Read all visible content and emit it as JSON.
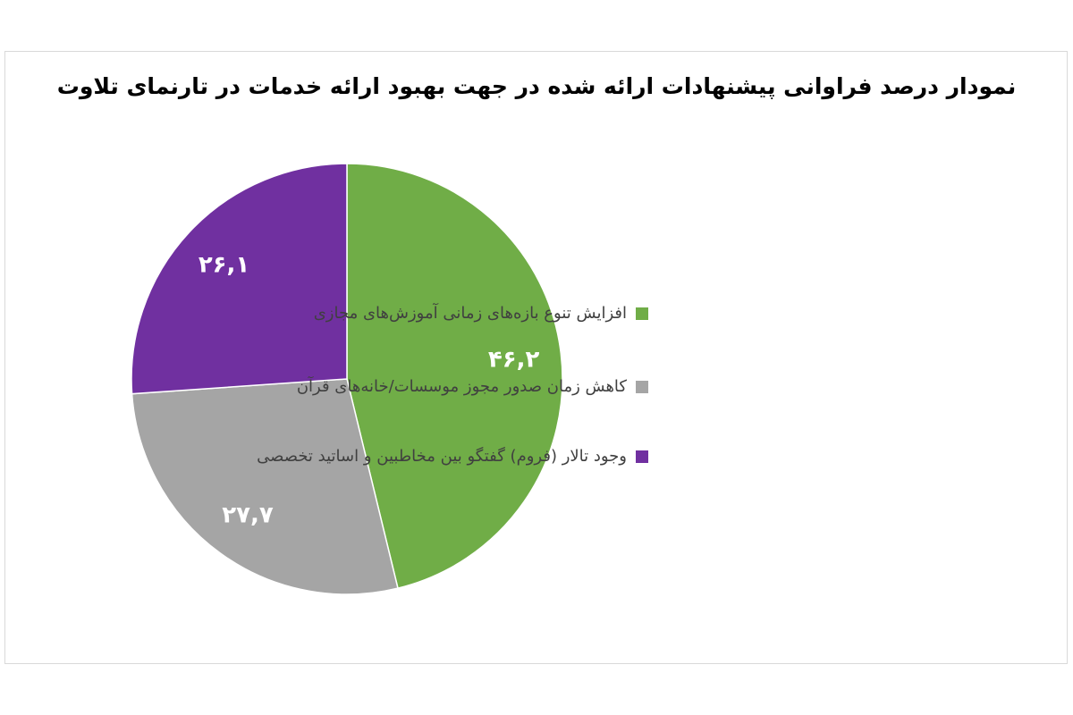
{
  "chart_data": {
    "type": "pie",
    "title": "نمودار درصد فراوانی پیشنهادات ارائه شده در جهت بهبود ارائه خدمات در تارنمای تلاوت",
    "categories": [
      "افزایش تنوع بازه‌های زمانی آموزش‌های مجازی",
      "کاهش زمان صدور مجوز موسسات/خانه‌های قرآن",
      "وجود تالار (فروم) گفتگو بین مخاطبین و اساتید تخصصی"
    ],
    "values": [
      46.2,
      27.7,
      26.1
    ],
    "data_labels": [
      "۴۶,۲",
      "۲۷,۷",
      "۲۶,۱"
    ],
    "colors": [
      "#70ad47",
      "#a5a5a5",
      "#7030a0"
    ],
    "start": "12 o'clock, clockwise",
    "legend_placement": "right"
  }
}
